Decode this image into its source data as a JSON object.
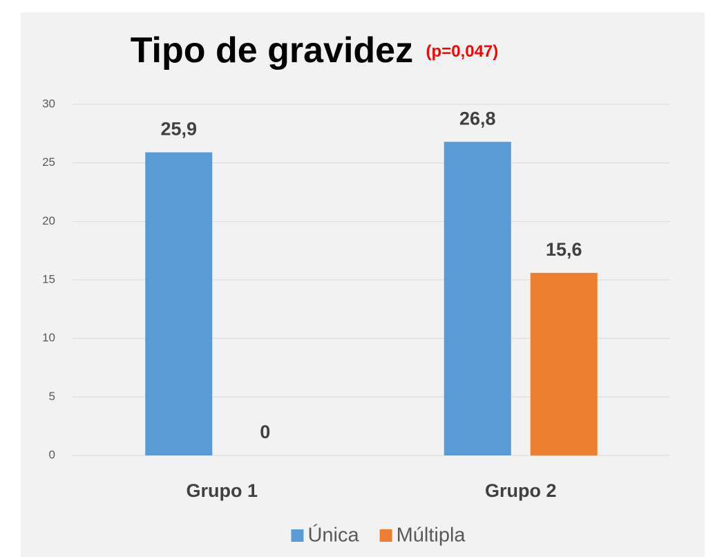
{
  "chart_data": {
    "type": "bar",
    "title": "Tipo de gravidez",
    "subtitle": "(p=0,047)",
    "categories": [
      "Grupo 1",
      "Grupo 2"
    ],
    "series": [
      {
        "name": "Única",
        "color": "#5b9bd5",
        "values": [
          25.9,
          26.8
        ],
        "value_labels": [
          "25,9",
          "26,8"
        ]
      },
      {
        "name": "Múltipla",
        "color": "#ed7d31",
        "values": [
          0,
          15.6
        ],
        "value_labels": [
          "0",
          "15,6"
        ]
      }
    ],
    "ylim": [
      0,
      30
    ],
    "yticks": [
      0,
      5,
      10,
      15,
      20,
      25,
      30
    ],
    "grid": true,
    "legend": "bottom"
  }
}
